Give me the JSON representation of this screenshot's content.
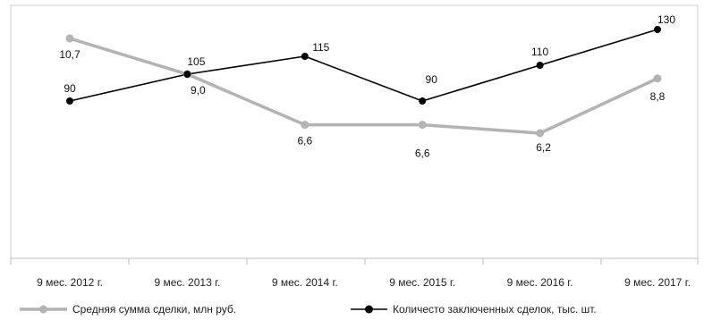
{
  "chart_data": {
    "type": "line",
    "categories": [
      "9 мес. 2012 г.",
      "9 мес. 2013 г.",
      "9 мес. 2014 г.",
      "9 мес. 2015 г.",
      "9 мес. 2016 г.",
      "9 мес. 2017 г."
    ],
    "series": [
      {
        "name": "Средняя сумма сделки, млн руб.",
        "values": [
          10.7,
          9.0,
          6.6,
          6.6,
          6.2,
          8.8
        ],
        "labels": [
          "10,7",
          "9,0",
          "6,6",
          "6,6",
          "6,2",
          "8,8"
        ],
        "color": "#b3b3b3"
      },
      {
        "name": "Количесто заключенных сделок, тыс. шт.",
        "values": [
          90,
          105,
          115,
          90,
          110,
          130
        ],
        "labels": [
          "90",
          "105",
          "115",
          "90",
          "110",
          "130"
        ],
        "color": "#000000"
      }
    ],
    "legend_position": "bottom",
    "grid": false
  }
}
